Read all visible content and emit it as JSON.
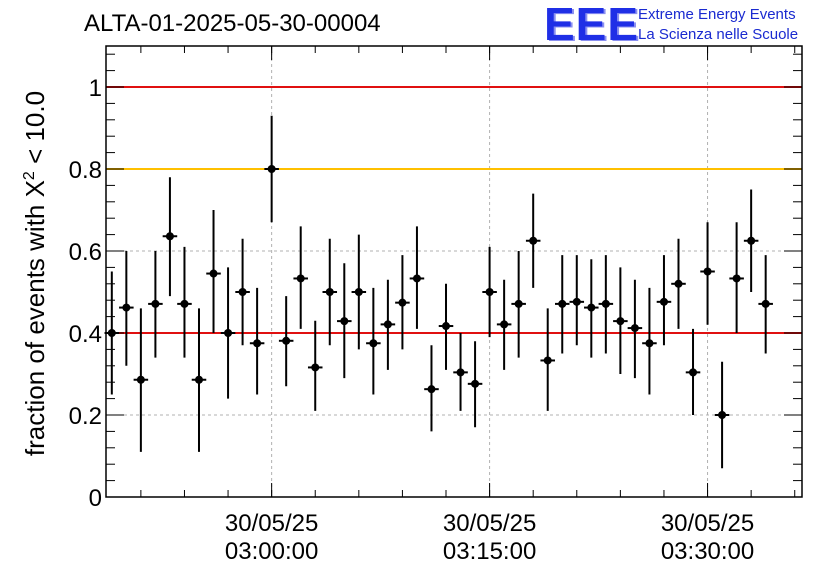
{
  "title": "ALTA-01-2025-05-30-00004",
  "logo": {
    "mark": "EEE",
    "line1": "Extreme Energy Events",
    "line2": "La Scienza nelle Scuole"
  },
  "chart_data": {
    "type": "scatter",
    "ylabel": "fraction of events with",
    "ylabel_symbol": "X",
    "ylabel_exponent": "2",
    "ylabel_tail": "< 10.0",
    "xlim": [
      "02:48:36",
      "03:36:30"
    ],
    "ylim": [
      0,
      1.1
    ],
    "y_ticks": [
      "0",
      "0.2",
      "0.4",
      "0.6",
      "0.8",
      "1"
    ],
    "x_ticks": [
      {
        "time": "03:00:00",
        "date_label": "30/05/25",
        "time_label": "03:00:00"
      },
      {
        "time": "03:15:00",
        "date_label": "30/05/25",
        "time_label": "03:15:00"
      },
      {
        "time": "03:30:00",
        "date_label": "30/05/25",
        "time_label": "03:30:00"
      }
    ],
    "grid": true,
    "reference_lines": [
      {
        "y": 1.0,
        "color": "#e01010"
      },
      {
        "y": 0.8,
        "color": "#ffc000"
      },
      {
        "y": 0.4,
        "color": "#e01010"
      }
    ],
    "series": [
      {
        "color": "#000000",
        "points": [
          {
            "x": "02:49:00",
            "y": 0.4,
            "y_low": 0.25,
            "y_high": 0.55
          },
          {
            "x": "02:50:00",
            "y": 0.462,
            "y_low": 0.32,
            "y_high": 0.6
          },
          {
            "x": "02:51:00",
            "y": 0.286,
            "y_low": 0.11,
            "y_high": 0.46
          },
          {
            "x": "02:52:00",
            "y": 0.471,
            "y_low": 0.34,
            "y_high": 0.6
          },
          {
            "x": "02:53:00",
            "y": 0.636,
            "y_low": 0.49,
            "y_high": 0.78
          },
          {
            "x": "02:54:00",
            "y": 0.471,
            "y_low": 0.34,
            "y_high": 0.61
          },
          {
            "x": "02:55:00",
            "y": 0.286,
            "y_low": 0.11,
            "y_high": 0.46
          },
          {
            "x": "02:56:00",
            "y": 0.545,
            "y_low": 0.4,
            "y_high": 0.7
          },
          {
            "x": "02:57:00",
            "y": 0.4,
            "y_low": 0.24,
            "y_high": 0.56
          },
          {
            "x": "02:58:00",
            "y": 0.5,
            "y_low": 0.37,
            "y_high": 0.63
          },
          {
            "x": "02:59:00",
            "y": 0.375,
            "y_low": 0.25,
            "y_high": 0.51
          },
          {
            "x": "03:00:00",
            "y": 0.8,
            "y_low": 0.67,
            "y_high": 0.93
          },
          {
            "x": "03:01:00",
            "y": 0.381,
            "y_low": 0.27,
            "y_high": 0.49
          },
          {
            "x": "03:02:00",
            "y": 0.533,
            "y_low": 0.41,
            "y_high": 0.66
          },
          {
            "x": "03:03:00",
            "y": 0.316,
            "y_low": 0.21,
            "y_high": 0.43
          },
          {
            "x": "03:04:00",
            "y": 0.5,
            "y_low": 0.37,
            "y_high": 0.63
          },
          {
            "x": "03:05:00",
            "y": 0.429,
            "y_low": 0.29,
            "y_high": 0.57
          },
          {
            "x": "03:06:00",
            "y": 0.5,
            "y_low": 0.36,
            "y_high": 0.64
          },
          {
            "x": "03:07:00",
            "y": 0.375,
            "y_low": 0.25,
            "y_high": 0.51
          },
          {
            "x": "03:08:00",
            "y": 0.421,
            "y_low": 0.31,
            "y_high": 0.53
          },
          {
            "x": "03:09:00",
            "y": 0.474,
            "y_low": 0.36,
            "y_high": 0.59
          },
          {
            "x": "03:10:00",
            "y": 0.533,
            "y_low": 0.41,
            "y_high": 0.66
          },
          {
            "x": "03:11:00",
            "y": 0.263,
            "y_low": 0.16,
            "y_high": 0.37
          },
          {
            "x": "03:12:00",
            "y": 0.417,
            "y_low": 0.31,
            "y_high": 0.52
          },
          {
            "x": "03:13:00",
            "y": 0.304,
            "y_low": 0.21,
            "y_high": 0.4
          },
          {
            "x": "03:14:00",
            "y": 0.276,
            "y_low": 0.17,
            "y_high": 0.38
          },
          {
            "x": "03:15:00",
            "y": 0.5,
            "y_low": 0.39,
            "y_high": 0.61
          },
          {
            "x": "03:16:00",
            "y": 0.421,
            "y_low": 0.31,
            "y_high": 0.53
          },
          {
            "x": "03:17:00",
            "y": 0.471,
            "y_low": 0.34,
            "y_high": 0.6
          },
          {
            "x": "03:18:00",
            "y": 0.625,
            "y_low": 0.51,
            "y_high": 0.74
          },
          {
            "x": "03:19:00",
            "y": 0.333,
            "y_low": 0.21,
            "y_high": 0.46
          },
          {
            "x": "03:20:00",
            "y": 0.471,
            "y_low": 0.35,
            "y_high": 0.59
          },
          {
            "x": "03:21:00",
            "y": 0.476,
            "y_low": 0.37,
            "y_high": 0.59
          },
          {
            "x": "03:22:00",
            "y": 0.462,
            "y_low": 0.34,
            "y_high": 0.58
          },
          {
            "x": "03:23:00",
            "y": 0.471,
            "y_low": 0.35,
            "y_high": 0.59
          },
          {
            "x": "03:24:00",
            "y": 0.429,
            "y_low": 0.3,
            "y_high": 0.56
          },
          {
            "x": "03:25:00",
            "y": 0.412,
            "y_low": 0.29,
            "y_high": 0.53
          },
          {
            "x": "03:26:00",
            "y": 0.375,
            "y_low": 0.25,
            "y_high": 0.51
          },
          {
            "x": "03:27:00",
            "y": 0.476,
            "y_low": 0.37,
            "y_high": 0.59
          },
          {
            "x": "03:28:00",
            "y": 0.52,
            "y_low": 0.41,
            "y_high": 0.63
          },
          {
            "x": "03:29:00",
            "y": 0.304,
            "y_low": 0.2,
            "y_high": 0.41
          },
          {
            "x": "03:30:00",
            "y": 0.55,
            "y_low": 0.42,
            "y_high": 0.67
          },
          {
            "x": "03:31:00",
            "y": 0.2,
            "y_low": 0.07,
            "y_high": 0.33
          },
          {
            "x": "03:32:00",
            "y": 0.533,
            "y_low": 0.4,
            "y_high": 0.67
          },
          {
            "x": "03:33:00",
            "y": 0.625,
            "y_low": 0.5,
            "y_high": 0.75
          },
          {
            "x": "03:34:00",
            "y": 0.471,
            "y_low": 0.35,
            "y_high": 0.59
          }
        ]
      }
    ]
  }
}
